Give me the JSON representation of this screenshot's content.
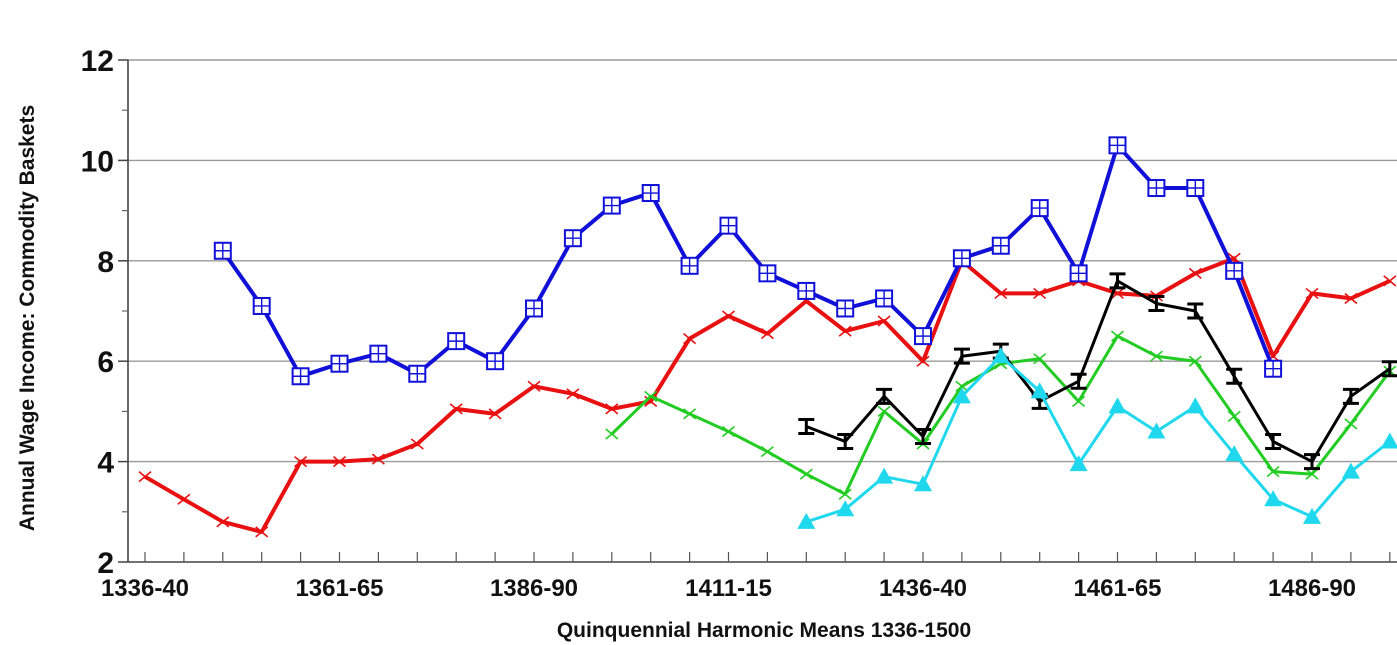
{
  "chart_data": {
    "type": "line",
    "title": "",
    "xlabel": "Quinquennial Harmonic Means 1336-1500",
    "ylabel": "Annual Wage Income: Commodity Baskets",
    "ylim": [
      2,
      12
    ],
    "yticks": [
      "2",
      "4",
      "6",
      "8",
      "10",
      "12"
    ],
    "grid": true,
    "legend": "none",
    "categories": [
      "1336-40",
      "1341-45",
      "1346-50",
      "1351-55",
      "1356-60",
      "1361-65",
      "1366-70",
      "1371-75",
      "1376-80",
      "1381-85",
      "1386-90",
      "1391-95",
      "1396-1400",
      "1401-05",
      "1406-10",
      "1411-15",
      "1416-20",
      "1421-25",
      "1426-30",
      "1431-35",
      "1436-40",
      "1441-45",
      "1446-50",
      "1451-55",
      "1456-60",
      "1461-65",
      "1466-70",
      "1471-75",
      "1476-80",
      "1481-85",
      "1486-90",
      "1491-95",
      "1496-1500"
    ],
    "x_tick_labels": [
      {
        "index": 0,
        "label": "1336-40"
      },
      {
        "index": 5,
        "label": "1361-65"
      },
      {
        "index": 10,
        "label": "1386-90"
      },
      {
        "index": 15,
        "label": "1411-15"
      },
      {
        "index": 20,
        "label": "1436-40"
      },
      {
        "index": 25,
        "label": "1461-65"
      },
      {
        "index": 30,
        "label": "1486-90"
      }
    ],
    "series": [
      {
        "color": "#e81010",
        "marker": "x",
        "values": [
          3.7,
          3.25,
          2.8,
          2.6,
          4.0,
          4.0,
          4.05,
          4.35,
          5.05,
          4.95,
          5.5,
          5.35,
          5.05,
          5.2,
          6.45,
          6.9,
          6.55,
          7.2,
          6.6,
          6.8,
          6.0,
          8.0,
          7.35,
          7.35,
          7.6,
          7.35,
          7.3,
          7.75,
          8.05,
          6.1,
          7.35,
          7.25,
          7.6
        ]
      },
      {
        "color": "#1010d8",
        "marker": "square",
        "values": [
          null,
          null,
          8.2,
          7.1,
          5.7,
          5.95,
          6.15,
          5.75,
          6.4,
          6.0,
          7.05,
          8.45,
          9.1,
          9.35,
          7.9,
          8.7,
          7.75,
          7.4,
          7.05,
          7.25,
          6.5,
          8.05,
          8.3,
          9.05,
          7.75,
          10.3,
          9.45,
          9.45,
          7.8,
          5.85,
          null,
          null,
          null
        ]
      },
      {
        "color": "#22cc22",
        "marker": "x",
        "values": [
          null,
          null,
          null,
          null,
          null,
          null,
          null,
          null,
          null,
          null,
          null,
          null,
          4.55,
          5.3,
          4.95,
          4.6,
          4.2,
          3.75,
          3.35,
          5.0,
          4.35,
          5.5,
          5.95,
          6.05,
          5.2,
          6.5,
          6.1,
          6.0,
          4.9,
          3.8,
          3.75,
          4.75,
          5.8
        ]
      },
      {
        "color": "#000000",
        "marker": "ibeam",
        "values": [
          null,
          null,
          null,
          null,
          null,
          null,
          null,
          null,
          null,
          null,
          null,
          null,
          null,
          null,
          null,
          null,
          null,
          4.7,
          4.4,
          5.3,
          4.5,
          6.1,
          6.2,
          5.2,
          5.6,
          7.6,
          7.15,
          7.0,
          5.7,
          4.4,
          4.0,
          5.3,
          5.85
        ]
      },
      {
        "color": "#20d8ee",
        "marker": "triangle",
        "values": [
          null,
          null,
          null,
          null,
          null,
          null,
          null,
          null,
          null,
          null,
          null,
          null,
          null,
          null,
          null,
          null,
          null,
          2.8,
          3.05,
          3.7,
          3.55,
          5.3,
          6.1,
          5.4,
          3.95,
          5.1,
          4.6,
          5.1,
          4.15,
          3.25,
          2.9,
          3.8,
          4.4
        ]
      }
    ]
  }
}
